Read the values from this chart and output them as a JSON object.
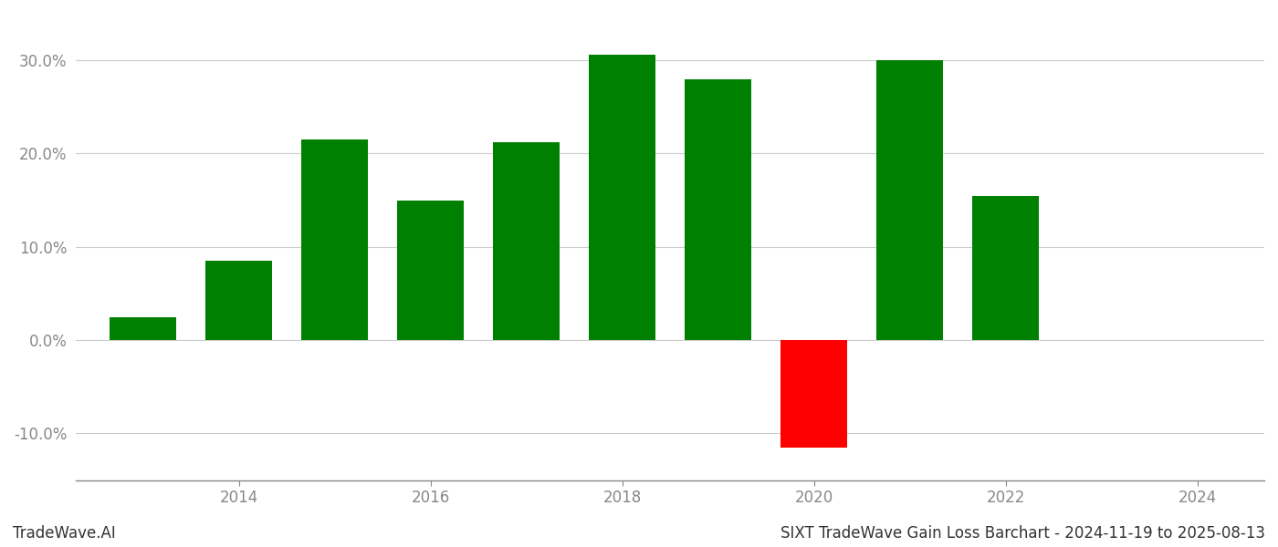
{
  "years": [
    2013,
    2014,
    2015,
    2016,
    2017,
    2018,
    2019,
    2020,
    2021,
    2022
  ],
  "values": [
    2.5,
    8.5,
    21.5,
    15.0,
    21.2,
    30.6,
    28.0,
    -11.5,
    30.0,
    15.5
  ],
  "colors": [
    "#008000",
    "#008000",
    "#008000",
    "#008000",
    "#008000",
    "#008000",
    "#008000",
    "#ff0000",
    "#008000",
    "#008000"
  ],
  "ylim": [
    -15,
    35
  ],
  "yticks": [
    -10.0,
    0.0,
    10.0,
    20.0,
    30.0
  ],
  "xlim_min": 2012.3,
  "xlim_max": 2024.7,
  "xtick_positions": [
    2014,
    2016,
    2018,
    2020,
    2022,
    2024
  ],
  "background_color": "#ffffff",
  "grid_color": "#cccccc",
  "axis_color": "#888888",
  "tick_color": "#888888",
  "title_text": "SIXT TradeWave Gain Loss Barchart - 2024-11-19 to 2025-08-13",
  "watermark_text": "TradeWave.AI",
  "title_fontsize": 12,
  "watermark_fontsize": 12,
  "bar_width": 0.7
}
